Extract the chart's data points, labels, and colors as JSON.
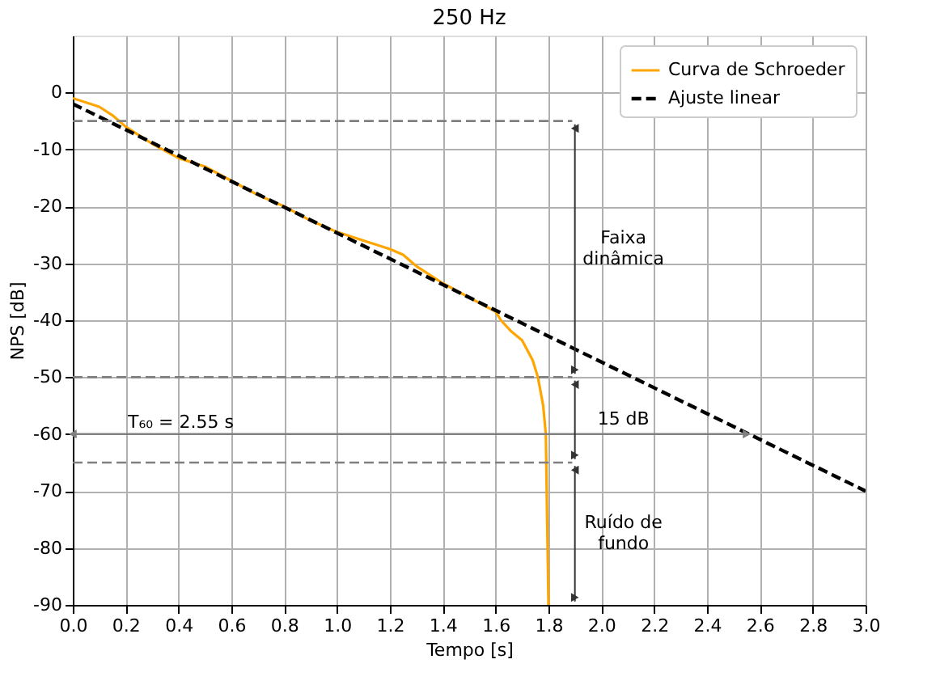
{
  "chart_data": {
    "type": "line",
    "title": "250 Hz",
    "xlabel": "Tempo [s]",
    "ylabel": "NPS [dB]",
    "xlim": [
      0,
      3
    ],
    "xticks": [
      {
        "value": 0,
        "label": "0.0"
      },
      {
        "value": 0.2,
        "label": "0.2"
      },
      {
        "value": 0.4,
        "label": "0.4"
      },
      {
        "value": 0.6,
        "label": "0.6"
      },
      {
        "value": 0.8,
        "label": "0.8"
      },
      {
        "value": 1,
        "label": "1.0"
      },
      {
        "value": 1.2,
        "label": "1.2"
      },
      {
        "value": 1.4,
        "label": "1.4"
      },
      {
        "value": 1.6,
        "label": "1.6"
      },
      {
        "value": 1.8,
        "label": "1.8"
      },
      {
        "value": 2,
        "label": "2.0"
      },
      {
        "value": 2.2,
        "label": "2.2"
      },
      {
        "value": 2.4,
        "label": "2.4"
      },
      {
        "value": 2.6,
        "label": "2.6"
      },
      {
        "value": 2.8,
        "label": "2.8"
      },
      {
        "value": 3,
        "label": "3.0"
      }
    ],
    "ylim": [
      -90,
      10
    ],
    "yticks": [
      -90,
      -80,
      -70,
      -60,
      -50,
      -40,
      -30,
      -20,
      -10,
      0
    ],
    "grid": true,
    "legend": "top right",
    "series": [
      {
        "name": "Curva de Schroeder",
        "color": "#ffa500",
        "line_style": "solid",
        "x": [
          0,
          0.1,
          0.15,
          0.2,
          0.3,
          0.4,
          0.5,
          0.6,
          0.7,
          0.8,
          0.9,
          1.0,
          1.1,
          1.2,
          1.25,
          1.3,
          1.4,
          1.5,
          1.6,
          1.62,
          1.66,
          1.7,
          1.74,
          1.76,
          1.78,
          1.79,
          1.795,
          1.8
        ],
        "values": [
          -1,
          -2.5,
          -4,
          -6,
          -9,
          -11.5,
          -13,
          -15.5,
          -18,
          -20,
          -22.5,
          -24.5,
          -26,
          -27.5,
          -28.5,
          -30.5,
          -33.5,
          -36,
          -38.5,
          -40,
          -42,
          -43.5,
          -47,
          -50,
          -55,
          -60,
          -75,
          -90
        ]
      },
      {
        "name": "Ajuste linear",
        "color": "#000000",
        "line_style": "dashed",
        "x": [
          0,
          3
        ],
        "values": [
          -2,
          -70
        ]
      },
      {
        "type": "line",
        "color": "#808080",
        "line_style": "solid",
        "marker": "triangle",
        "x": [
          0,
          2.55
        ],
        "values": [
          -60,
          -60
        ]
      }
    ],
    "ref_lines": [
      {
        "axis": "y",
        "value": -5,
        "color": "#808080",
        "line_style": "dashed"
      },
      {
        "axis": "y",
        "value": -50,
        "color": "#808080",
        "line_style": "dashed"
      },
      {
        "axis": "y",
        "value": -65,
        "color": "#808080",
        "line_style": "dashed"
      }
    ],
    "annotations": [
      "Faixa\ndinâmica",
      "15 dB",
      "Ruído de\nfundo",
      "T₆₀ = 2.55 s"
    ]
  }
}
